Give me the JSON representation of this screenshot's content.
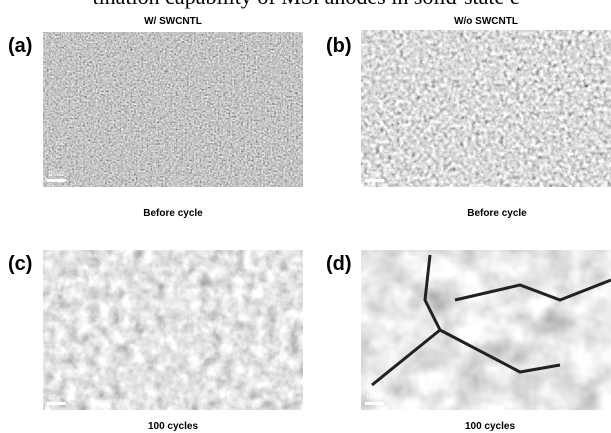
{
  "header": {
    "text": "tination capability of MSi anodes in solid-state c"
  },
  "columns": [
    {
      "title": "W/  SWCNTL"
    },
    {
      "title": "W/o  SWCNTL"
    }
  ],
  "panels": [
    {
      "label": "(a)",
      "scale_bar": "10 um",
      "caption": "Before cycle"
    },
    {
      "label": "(b)",
      "scale_bar": "10 um",
      "caption": "Before cycle"
    },
    {
      "label": "(c)",
      "scale_bar": "10 um",
      "caption": "100 cycles"
    },
    {
      "label": "(d)",
      "scale_bar": "10 um",
      "caption": "100 cycles"
    }
  ]
}
